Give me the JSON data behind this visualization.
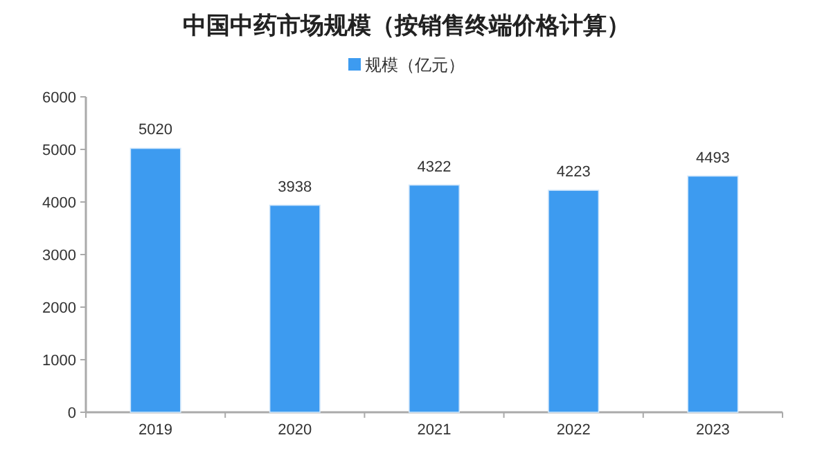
{
  "chart_data": {
    "type": "bar",
    "title": "中国中药市场规模（按销售终端价格计算）",
    "categories": [
      "2019",
      "2020",
      "2021",
      "2022",
      "2023"
    ],
    "series": [
      {
        "name": "规模（亿元）",
        "color": "#3d9bf0",
        "values": [
          5020,
          3938,
          4322,
          4223,
          4493
        ]
      }
    ],
    "ylim": [
      0,
      6000
    ],
    "yticks": [
      0,
      1000,
      2000,
      3000,
      4000,
      5000,
      6000
    ],
    "data_labels": true,
    "legend": "top",
    "grid": false
  }
}
